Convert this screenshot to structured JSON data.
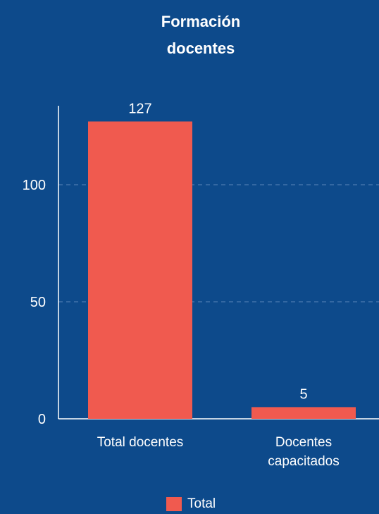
{
  "chart_data": {
    "type": "bar",
    "title": "Formación\ndocentes",
    "categories": [
      "Total docentes",
      "Docentes\ncapacitados"
    ],
    "series": [
      {
        "name": "Total",
        "values": [
          127,
          5
        ],
        "data_labels": [
          "127",
          "5"
        ]
      }
    ],
    "xlabel": "",
    "ylabel": "",
    "ylim": [
      0,
      140
    ],
    "yticks": [
      0,
      50,
      100
    ],
    "ytick_labels": [
      "0",
      "50",
      "100"
    ],
    "grid": true,
    "legend_position": "bottom-center"
  },
  "colors": {
    "background": "#0d4a8b",
    "bar": "#f05a4f",
    "text": "#ffffff",
    "gridline": "#5b86b8",
    "axis": "#ffffff"
  }
}
